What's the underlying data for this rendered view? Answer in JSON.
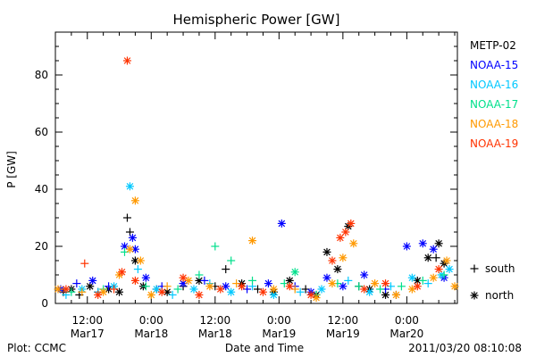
{
  "chart_data": {
    "type": "scatter",
    "title": "Hemispheric Power [GW]",
    "xlabel": "Date and Time",
    "ylabel": "P [GW]",
    "xlim": [
      "2011-03-17 06:00",
      "2011-03-20 09:30"
    ],
    "ylim": [
      0,
      95
    ],
    "y_ticks": [
      0,
      20,
      40,
      60,
      80
    ],
    "x_ticks": [
      {
        "t": "2011-03-17 12:00",
        "time": "12:00",
        "date": "Mar17"
      },
      {
        "t": "2011-03-18 00:00",
        "time": "0:00",
        "date": "Mar18"
      },
      {
        "t": "2011-03-18 12:00",
        "time": "12:00",
        "date": "Mar18"
      },
      {
        "t": "2011-03-19 00:00",
        "time": "0:00",
        "date": "Mar19"
      },
      {
        "t": "2011-03-19 12:00",
        "time": "12:00",
        "date": "Mar19"
      },
      {
        "t": "2011-03-20 00:00",
        "time": "0:00",
        "date": "Mar20"
      }
    ],
    "grid": false,
    "legend_position": "right",
    "marker_legend": [
      {
        "symbol": "+",
        "label": "south"
      },
      {
        "symbol": "*",
        "label": "north"
      }
    ],
    "series": [
      {
        "name": "METP-02",
        "color": "#000000",
        "points": [
          [
            "2011-03-17 07:30",
            4,
            "+"
          ],
          [
            "2011-03-17 09:00",
            5,
            "*"
          ],
          [
            "2011-03-17 10:30",
            3,
            "+"
          ],
          [
            "2011-03-17 12:30",
            6,
            "*"
          ],
          [
            "2011-03-17 14:00",
            4,
            "+"
          ],
          [
            "2011-03-17 16:00",
            5,
            "*"
          ],
          [
            "2011-03-17 18:00",
            4,
            "*"
          ],
          [
            "2011-03-17 19:30",
            30,
            "+"
          ],
          [
            "2011-03-17 20:00",
            25,
            "+"
          ],
          [
            "2011-03-17 21:00",
            15,
            "*"
          ],
          [
            "2011-03-17 22:30",
            6,
            "*"
          ],
          [
            "2011-03-18 01:00",
            5,
            "+"
          ],
          [
            "2011-03-18 03:00",
            4,
            "*"
          ],
          [
            "2011-03-18 06:00",
            6,
            "+"
          ],
          [
            "2011-03-18 09:00",
            8,
            "*"
          ],
          [
            "2011-03-18 12:00",
            6,
            "+"
          ],
          [
            "2011-03-18 14:00",
            12,
            "+"
          ],
          [
            "2011-03-18 17:00",
            7,
            "*"
          ],
          [
            "2011-03-18 20:00",
            5,
            "+"
          ],
          [
            "2011-03-18 23:00",
            4,
            "*"
          ],
          [
            "2011-03-19 02:00",
            8,
            "*"
          ],
          [
            "2011-03-19 05:00",
            5,
            "+"
          ],
          [
            "2011-03-19 07:00",
            3,
            "*"
          ],
          [
            "2011-03-19 09:00",
            18,
            "*"
          ],
          [
            "2011-03-19 11:00",
            12,
            "*"
          ],
          [
            "2011-03-19 13:00",
            27,
            "*"
          ],
          [
            "2011-03-19 15:00",
            6,
            "+"
          ],
          [
            "2011-03-19 17:00",
            5,
            "*"
          ],
          [
            "2011-03-19 20:00",
            3,
            "*"
          ],
          [
            "2011-03-19 22:00",
            3,
            "+"
          ],
          [
            "2011-03-20 02:00",
            8,
            "*"
          ],
          [
            "2011-03-20 04:00",
            16,
            "*"
          ],
          [
            "2011-03-20 05:30",
            16,
            "+"
          ],
          [
            "2011-03-20 06:00",
            21,
            "*"
          ],
          [
            "2011-03-20 07:00",
            14,
            "*"
          ]
        ]
      },
      {
        "name": "NOAA-15",
        "color": "#0000ff",
        "points": [
          [
            "2011-03-17 07:00",
            5,
            "*"
          ],
          [
            "2011-03-17 10:00",
            7,
            "+"
          ],
          [
            "2011-03-17 13:00",
            8,
            "*"
          ],
          [
            "2011-03-17 16:00",
            6,
            "+"
          ],
          [
            "2011-03-17 19:00",
            20,
            "*"
          ],
          [
            "2011-03-17 20:30",
            23,
            "*"
          ],
          [
            "2011-03-17 21:00",
            19,
            "*"
          ],
          [
            "2011-03-17 23:00",
            9,
            "*"
          ],
          [
            "2011-03-18 02:00",
            6,
            "+"
          ],
          [
            "2011-03-18 06:00",
            7,
            "*"
          ],
          [
            "2011-03-18 10:00",
            8,
            "+"
          ],
          [
            "2011-03-18 14:00",
            6,
            "*"
          ],
          [
            "2011-03-18 18:00",
            5,
            "+"
          ],
          [
            "2011-03-18 22:00",
            7,
            "*"
          ],
          [
            "2011-03-19 00:30",
            28,
            "*"
          ],
          [
            "2011-03-19 03:00",
            6,
            "+"
          ],
          [
            "2011-03-19 06:00",
            4,
            "*"
          ],
          [
            "2011-03-19 09:00",
            9,
            "*"
          ],
          [
            "2011-03-19 12:00",
            6,
            "*"
          ],
          [
            "2011-03-19 16:00",
            10,
            "*"
          ],
          [
            "2011-03-19 20:00",
            5,
            "+"
          ],
          [
            "2011-03-20 00:00",
            20,
            "*"
          ],
          [
            "2011-03-20 03:00",
            21,
            "*"
          ],
          [
            "2011-03-20 05:00",
            19,
            "*"
          ],
          [
            "2011-03-20 07:00",
            9,
            "*"
          ]
        ]
      },
      {
        "name": "NOAA-16",
        "color": "#00c8ff",
        "points": [
          [
            "2011-03-17 08:00",
            3,
            "+"
          ],
          [
            "2011-03-17 11:00",
            5,
            "*"
          ],
          [
            "2011-03-17 14:00",
            4,
            "+"
          ],
          [
            "2011-03-17 17:00",
            6,
            "*"
          ],
          [
            "2011-03-17 20:00",
            41,
            "*"
          ],
          [
            "2011-03-17 21:30",
            12,
            "+"
          ],
          [
            "2011-03-18 01:00",
            5,
            "*"
          ],
          [
            "2011-03-18 04:00",
            3,
            "+"
          ],
          [
            "2011-03-18 08:00",
            5,
            "*"
          ],
          [
            "2011-03-18 11:00",
            7,
            "+"
          ],
          [
            "2011-03-18 15:00",
            4,
            "*"
          ],
          [
            "2011-03-18 19:00",
            6,
            "+"
          ],
          [
            "2011-03-18 23:00",
            3,
            "*"
          ],
          [
            "2011-03-19 04:00",
            4,
            "+"
          ],
          [
            "2011-03-19 08:00",
            5,
            "*"
          ],
          [
            "2011-03-19 13:00",
            8,
            "+"
          ],
          [
            "2011-03-19 17:00",
            4,
            "*"
          ],
          [
            "2011-03-19 21:00",
            6,
            "+"
          ],
          [
            "2011-03-20 01:00",
            9,
            "*"
          ],
          [
            "2011-03-20 04:00",
            7,
            "+"
          ],
          [
            "2011-03-20 06:30",
            10,
            "*"
          ],
          [
            "2011-03-20 08:00",
            12,
            "*"
          ]
        ]
      },
      {
        "name": "NOAA-17",
        "color": "#00e08c",
        "points": [
          [
            "2011-03-17 09:00",
            4,
            "+"
          ],
          [
            "2011-03-17 15:00",
            5,
            "+"
          ],
          [
            "2011-03-17 19:00",
            18,
            "+"
          ],
          [
            "2011-03-17 23:00",
            6,
            "+"
          ],
          [
            "2011-03-18 05:00",
            5,
            "+"
          ],
          [
            "2011-03-18 09:00",
            10,
            "+"
          ],
          [
            "2011-03-18 12:00",
            20,
            "+"
          ],
          [
            "2011-03-18 15:00",
            15,
            "+"
          ],
          [
            "2011-03-18 19:00",
            8,
            "+"
          ],
          [
            "2011-03-19 01:00",
            7,
            "+"
          ],
          [
            "2011-03-19 03:00",
            11,
            "*"
          ],
          [
            "2011-03-19 07:00",
            3,
            "+"
          ],
          [
            "2011-03-19 11:00",
            7,
            "+"
          ],
          [
            "2011-03-19 15:00",
            6,
            "+"
          ],
          [
            "2011-03-19 19:00",
            5,
            "+"
          ],
          [
            "2011-03-19 23:00",
            6,
            "+"
          ],
          [
            "2011-03-20 03:00",
            8,
            "+"
          ],
          [
            "2011-03-20 07:00",
            10,
            "+"
          ]
        ]
      },
      {
        "name": "NOAA-18",
        "color": "#ff9900",
        "points": [
          [
            "2011-03-17 06:30",
            5,
            "*"
          ],
          [
            "2011-03-17 11:00",
            4,
            "+"
          ],
          [
            "2011-03-17 15:00",
            4,
            "*"
          ],
          [
            "2011-03-17 18:00",
            10,
            "*"
          ],
          [
            "2011-03-17 20:00",
            19,
            "*"
          ],
          [
            "2011-03-17 21:00",
            36,
            "*"
          ],
          [
            "2011-03-17 22:00",
            15,
            "*"
          ],
          [
            "2011-03-18 00:00",
            3,
            "*"
          ],
          [
            "2011-03-18 03:00",
            6,
            "+"
          ],
          [
            "2011-03-18 07:00",
            8,
            "*"
          ],
          [
            "2011-03-18 11:00",
            6,
            "*"
          ],
          [
            "2011-03-18 16:00",
            7,
            "+"
          ],
          [
            "2011-03-18 19:00",
            22,
            "*"
          ],
          [
            "2011-03-18 23:00",
            5,
            "*"
          ],
          [
            "2011-03-19 03:00",
            5,
            "+"
          ],
          [
            "2011-03-19 07:00",
            2,
            "*"
          ],
          [
            "2011-03-19 10:00",
            7,
            "*"
          ],
          [
            "2011-03-19 12:00",
            16,
            "*"
          ],
          [
            "2011-03-19 14:00",
            21,
            "*"
          ],
          [
            "2011-03-19 18:00",
            7,
            "*"
          ],
          [
            "2011-03-19 22:00",
            3,
            "*"
          ],
          [
            "2011-03-20 01:00",
            5,
            "*"
          ],
          [
            "2011-03-20 05:00",
            9,
            "*"
          ],
          [
            "2011-03-20 07:30",
            15,
            "*"
          ],
          [
            "2011-03-20 09:00",
            6,
            "*"
          ]
        ]
      },
      {
        "name": "NOAA-19",
        "color": "#ff3300",
        "points": [
          [
            "2011-03-17 08:00",
            5,
            "*"
          ],
          [
            "2011-03-17 11:30",
            14,
            "+"
          ],
          [
            "2011-03-17 14:00",
            3,
            "*"
          ],
          [
            "2011-03-17 17:00",
            5,
            "+"
          ],
          [
            "2011-03-17 18:30",
            11,
            "*"
          ],
          [
            "2011-03-17 19:30",
            85,
            "*"
          ],
          [
            "2011-03-17 21:00",
            8,
            "*"
          ],
          [
            "2011-03-18 02:00",
            4,
            "*"
          ],
          [
            "2011-03-18 06:00",
            9,
            "*"
          ],
          [
            "2011-03-18 09:00",
            3,
            "*"
          ],
          [
            "2011-03-18 13:00",
            5,
            "*"
          ],
          [
            "2011-03-18 17:00",
            6,
            "*"
          ],
          [
            "2011-03-18 21:00",
            4,
            "*"
          ],
          [
            "2011-03-19 02:00",
            6,
            "*"
          ],
          [
            "2011-03-19 06:00",
            3,
            "*"
          ],
          [
            "2011-03-19 10:00",
            15,
            "*"
          ],
          [
            "2011-03-19 11:30",
            23,
            "*"
          ],
          [
            "2011-03-19 12:30",
            25,
            "*"
          ],
          [
            "2011-03-19 13:30",
            28,
            "*"
          ],
          [
            "2011-03-19 16:00",
            5,
            "*"
          ],
          [
            "2011-03-19 20:00",
            7,
            "*"
          ],
          [
            "2011-03-20 02:00",
            6,
            "*"
          ],
          [
            "2011-03-20 06:00",
            12,
            "*"
          ]
        ]
      }
    ]
  },
  "footer": {
    "plot_credit": "Plot: CCMC",
    "timestamp": "2011/03/20 08:10:08"
  }
}
